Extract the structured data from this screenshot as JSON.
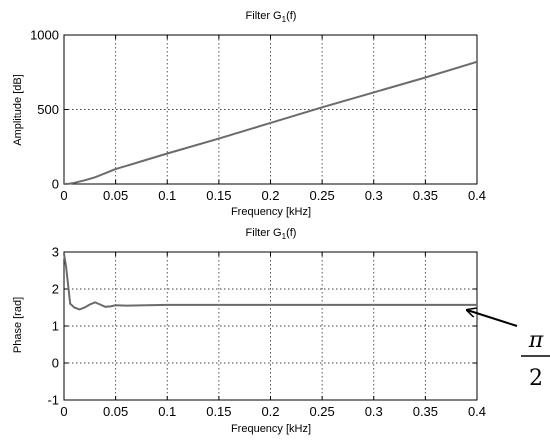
{
  "chart_data": [
    {
      "type": "line",
      "title": "Filter G",
      "title_subscript": "1",
      "title_suffix": "(f)",
      "xlabel": "Frequency [kHz]",
      "ylabel": "Amplitude [dB]",
      "xlim": [
        0,
        0.4
      ],
      "ylim": [
        0,
        1000
      ],
      "xticks": [
        "0",
        "0.05",
        "0.1",
        "0.15",
        "0.2",
        "0.25",
        "0.3",
        "0.35",
        "0.4"
      ],
      "yticks": [
        "0",
        "500",
        "1000"
      ],
      "grid": true,
      "series": [
        {
          "color": "#6b6b6b",
          "x": [
            0,
            0.005,
            0.01,
            0.02,
            0.03,
            0.05,
            0.1,
            0.15,
            0.2,
            0.25,
            0.3,
            0.35,
            0.4
          ],
          "y": [
            0,
            2,
            8,
            25,
            45,
            100,
            205,
            305,
            410,
            515,
            615,
            715,
            820
          ]
        }
      ]
    },
    {
      "type": "line",
      "title": "Filter G",
      "title_subscript": "1",
      "title_suffix": "(f)",
      "xlabel": "Frequency [kHz]",
      "ylabel": "Phase [rad]",
      "xlim": [
        0,
        0.4
      ],
      "ylim": [
        -1,
        3
      ],
      "xticks": [
        "0",
        "0.05",
        "0.1",
        "0.15",
        "0.2",
        "0.25",
        "0.3",
        "0.35",
        "0.4"
      ],
      "yticks": [
        "-1",
        "0",
        "1",
        "2",
        "3"
      ],
      "grid": true,
      "series": [
        {
          "color": "#6b6b6b",
          "x": [
            0,
            0.002,
            0.006,
            0.01,
            0.015,
            0.02,
            0.025,
            0.03,
            0.035,
            0.04,
            0.045,
            0.05,
            0.06,
            0.08,
            0.1,
            0.15,
            0.2,
            0.25,
            0.3,
            0.35,
            0.4
          ],
          "y": [
            2.95,
            2.6,
            1.6,
            1.5,
            1.45,
            1.5,
            1.58,
            1.64,
            1.58,
            1.52,
            1.53,
            1.56,
            1.55,
            1.56,
            1.57,
            1.57,
            1.57,
            1.57,
            1.57,
            1.57,
            1.57
          ]
        }
      ],
      "annotation": {
        "text_numerator": "π",
        "text_denominator": "2",
        "target_x": 0.39,
        "target_y": 1.57
      }
    }
  ]
}
